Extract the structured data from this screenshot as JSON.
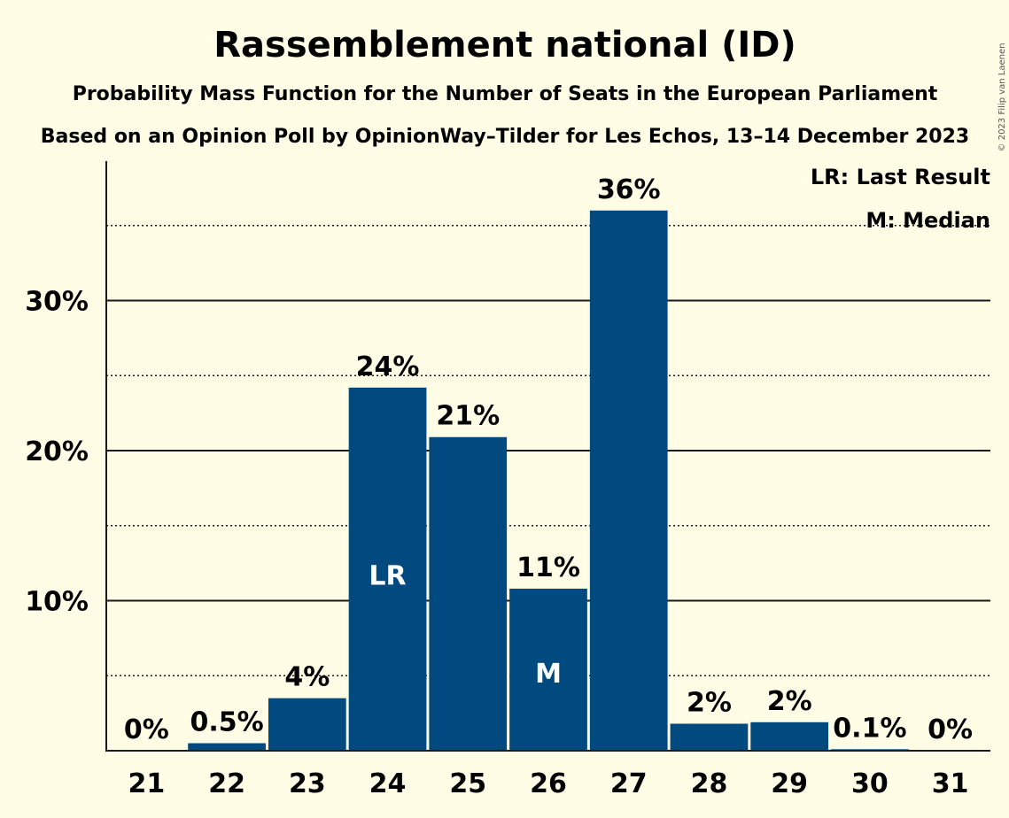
{
  "chart_data": {
    "type": "bar",
    "title": "Rassemblement national (ID)",
    "subtitle": "Probability Mass Function for the Number of Seats in the European Parliament",
    "subtitle2": "Based on an Opinion Poll by OpinionWay–Tilder for Les Echos, 13–14 December 2023",
    "categories": [
      "21",
      "22",
      "23",
      "24",
      "25",
      "26",
      "27",
      "28",
      "29",
      "30",
      "31"
    ],
    "values": [
      0,
      0.5,
      3.5,
      24.2,
      20.9,
      10.8,
      36.0,
      1.8,
      1.9,
      0.1,
      0
    ],
    "data_labels": [
      "0%",
      "0.5%",
      "4%",
      "24%",
      "21%",
      "11%",
      "36%",
      "2%",
      "2%",
      "0.1%",
      "0%"
    ],
    "bar_markers": {
      "24": "LR",
      "26": "M"
    },
    "ylim": [
      0,
      38
    ],
    "yticks": [
      10,
      20,
      30
    ],
    "ytick_labels": [
      "10%",
      "20%",
      "30%"
    ],
    "minor_gridlines": [
      5,
      15,
      25,
      35
    ],
    "legend": [
      "LR: Last Result",
      "M: Median"
    ],
    "legend_position": "top-right",
    "copyright": "© 2023 Filip van Laenen",
    "colors": {
      "bar": "#004A7F",
      "background": "#FFFDE6",
      "text": "#1a1a1a"
    }
  }
}
